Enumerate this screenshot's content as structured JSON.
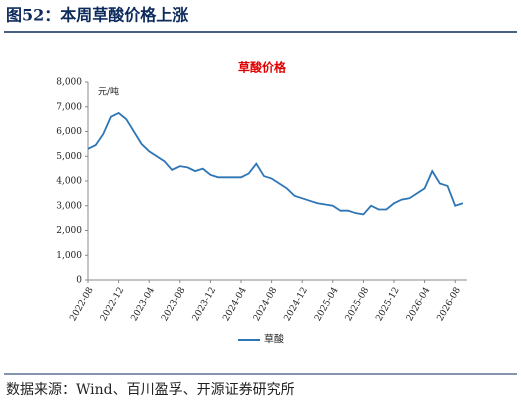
{
  "header": {
    "title": "图52：本周草酸价格上涨"
  },
  "chart_data": {
    "type": "line",
    "title": "草酸价格",
    "unit": "元/吨",
    "categories": [
      "2022-08",
      null,
      null,
      null,
      "2022-12",
      null,
      null,
      null,
      "2023-04",
      null,
      null,
      null,
      "2023-08",
      null,
      null,
      null,
      "2023-12",
      null,
      null,
      null,
      "2024-04",
      null,
      null,
      null,
      "2024-08",
      null,
      null,
      null,
      "2024-12",
      null,
      null,
      null,
      "2025-04",
      null,
      null,
      null,
      "2025-08",
      null,
      null,
      null,
      "2025-12",
      null,
      null,
      null,
      "2026-04",
      null,
      null,
      null,
      "2026-08",
      null
    ],
    "series": [
      {
        "name": "草酸",
        "color": "#2e75b6",
        "values": [
          5300,
          5450,
          5900,
          6600,
          6750,
          6500,
          6000,
          5500,
          5200,
          5000,
          4800,
          4450,
          4600,
          4550,
          4400,
          4500,
          4250,
          4150,
          4150,
          4150,
          4150,
          4300,
          4700,
          4200,
          4100,
          3900,
          3700,
          3400,
          3300,
          3200,
          3100,
          3050,
          3000,
          2800,
          2800,
          2700,
          2650,
          3000,
          2850,
          2850,
          3100,
          3250,
          3300,
          3500,
          3700,
          4400,
          3900,
          3800,
          3000,
          3100
        ]
      }
    ],
    "ylim": [
      0,
      8000
    ],
    "yticks": [
      0,
      {
        "value": 1000,
        "label": "1,000"
      },
      {
        "value": 2000,
        "label": "2,000"
      },
      {
        "value": 3000,
        "label": "3,000"
      },
      {
        "value": 4000,
        "label": "4,000"
      },
      {
        "value": 5000,
        "label": "5,000"
      },
      {
        "value": 6000,
        "label": "6,000"
      },
      {
        "value": 7000,
        "label": "7,000"
      },
      {
        "value": 8000,
        "label": "8,000"
      }
    ],
    "legend": "bottom"
  },
  "footer": {
    "source": "数据来源：Wind、百川盈孚、开源证券研究所"
  }
}
